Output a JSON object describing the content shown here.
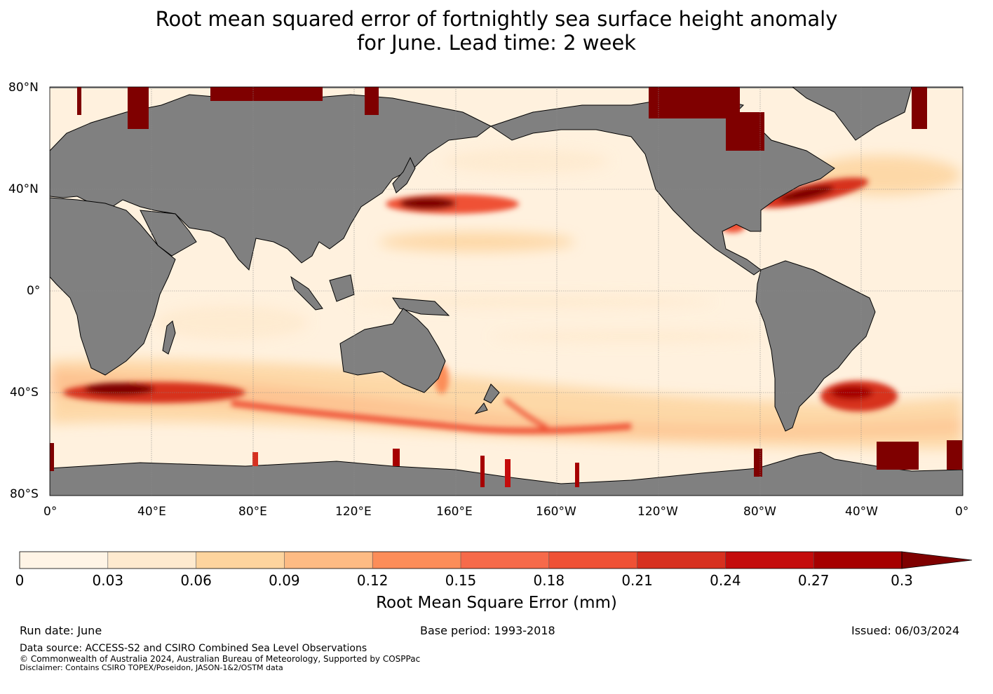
{
  "title_line1": "Root mean squared error of fortnightly sea surface height anomaly",
  "title_line2": "for June. Lead time: 2 week",
  "map": {
    "lat_labels": [
      "80°N",
      "40°N",
      "0°",
      "40°S",
      "80°S"
    ],
    "lon_labels": [
      "0°",
      "40°E",
      "80°E",
      "120°E",
      "160°E",
      "160°W",
      "120°W",
      "80°W",
      "40°W",
      "0°"
    ],
    "ocean_color": "#fff1de",
    "land_color": "#808080",
    "hotspots": [
      {
        "name": "Kuroshio Extension",
        "lat": 35,
        "lon": 148,
        "level": 0.3
      },
      {
        "name": "Gulf Stream",
        "lat": 39,
        "lon": 293,
        "level": 0.27
      },
      {
        "name": "Agulhas Return Current",
        "lat": -40,
        "lon": 25,
        "level": 0.3
      },
      {
        "name": "Brazil-Malvinas Confluence",
        "lat": -42,
        "lon": 307,
        "level": 0.27
      },
      {
        "name": "East Australian Current",
        "lat": -35,
        "lon": 155,
        "level": 0.18
      },
      {
        "name": "Antarctic Circumpolar Current",
        "lat": -52,
        "lon": 120,
        "level": 0.21
      },
      {
        "name": "Gulf of Mexico Loop Current",
        "lat": 25,
        "lon": 272,
        "level": 0.21
      }
    ]
  },
  "colorbar": {
    "ticks": [
      "0",
      "0.03",
      "0.06",
      "0.09",
      "0.12",
      "0.15",
      "0.18",
      "0.21",
      "0.24",
      "0.27",
      "0.3"
    ],
    "colors": [
      "#fff4e6",
      "#feeacf",
      "#fdd49e",
      "#fdbb84",
      "#fc8d59",
      "#f66a4a",
      "#ef5135",
      "#d7301f",
      "#c40c0c",
      "#a60000",
      "#7f0000"
    ],
    "label": "Root Mean Square Error (mm)"
  },
  "footer": {
    "run_date": "Run date: June",
    "base_period": "Base period: 1993-2018",
    "issued": "Issued: 06/03/2024",
    "source": "Data source: ACCESS-S2 and CSIRO Combined Sea Level Observations",
    "copyright": "© Commonwealth of Australia 2024, Australian Bureau of Meteorology, Supported by COSPPac",
    "disclaimer": "Disclaimer: Contains CSIRO TOPEX/Poseidon, JASON-1&2/OSTM data"
  }
}
